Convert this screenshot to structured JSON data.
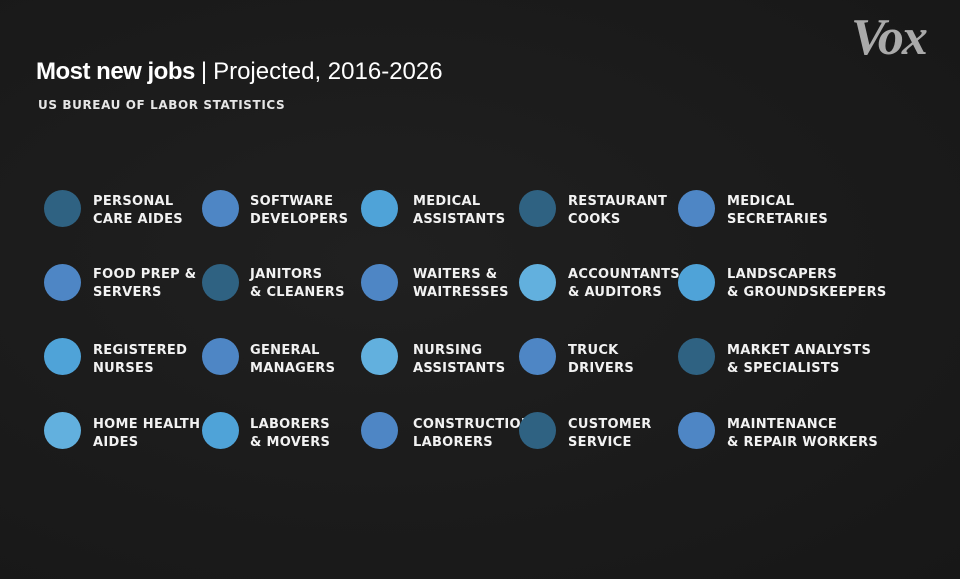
{
  "brand": {
    "logo_text": "Vox"
  },
  "header": {
    "title_bold": "Most new jobs",
    "separator": "|",
    "title_rest": "Projected, 2016-2026",
    "source": "US Bureau of Labor Statistics"
  },
  "colors": {
    "dark": "#2f6282",
    "mid": "#4e86c5",
    "light": "#4fa3d8",
    "pale": "#62b0de",
    "background": "#1c1c1c"
  },
  "jobs": [
    {
      "line1": "Personal",
      "line2": "Care Aides",
      "color": "#2f6282"
    },
    {
      "line1": "Software",
      "line2": "Developers",
      "color": "#4e86c5"
    },
    {
      "line1": "Medical",
      "line2": "Assistants",
      "color": "#4fa3d8"
    },
    {
      "line1": "Restaurant",
      "line2": "Cooks",
      "color": "#2f6282"
    },
    {
      "line1": "Medical",
      "line2": "Secretaries",
      "color": "#4e86c5"
    },
    {
      "line1": "Food Prep &",
      "line2": "Servers",
      "color": "#4e86c5"
    },
    {
      "line1": "Janitors",
      "line2": "& Cleaners",
      "color": "#2f6282"
    },
    {
      "line1": "Waiters &",
      "line2": "Waitresses",
      "color": "#4e86c5"
    },
    {
      "line1": "Accountants",
      "line2": "& Auditors",
      "color": "#62b0de"
    },
    {
      "line1": "Landscapers",
      "line2": "& Groundskeepers",
      "color": "#4fa3d8"
    },
    {
      "line1": "Registered",
      "line2": "Nurses",
      "color": "#4fa3d8"
    },
    {
      "line1": "General",
      "line2": "Managers",
      "color": "#4e86c5"
    },
    {
      "line1": "Nursing",
      "line2": "Assistants",
      "color": "#62b0de"
    },
    {
      "line1": "Truck",
      "line2": "Drivers",
      "color": "#4e86c5"
    },
    {
      "line1": "Market Analysts",
      "line2": "& Specialists",
      "color": "#2f6282"
    },
    {
      "line1": "Home Health",
      "line2": "Aides",
      "color": "#62b0de"
    },
    {
      "line1": "Laborers",
      "line2": "& Movers",
      "color": "#4fa3d8"
    },
    {
      "line1": "Construction",
      "line2": "Laborers",
      "color": "#4e86c5"
    },
    {
      "line1": "Customer",
      "line2": "Service",
      "color": "#2f6282"
    },
    {
      "line1": "Maintenance",
      "line2": "& Repair Workers",
      "color": "#4e86c5"
    }
  ]
}
